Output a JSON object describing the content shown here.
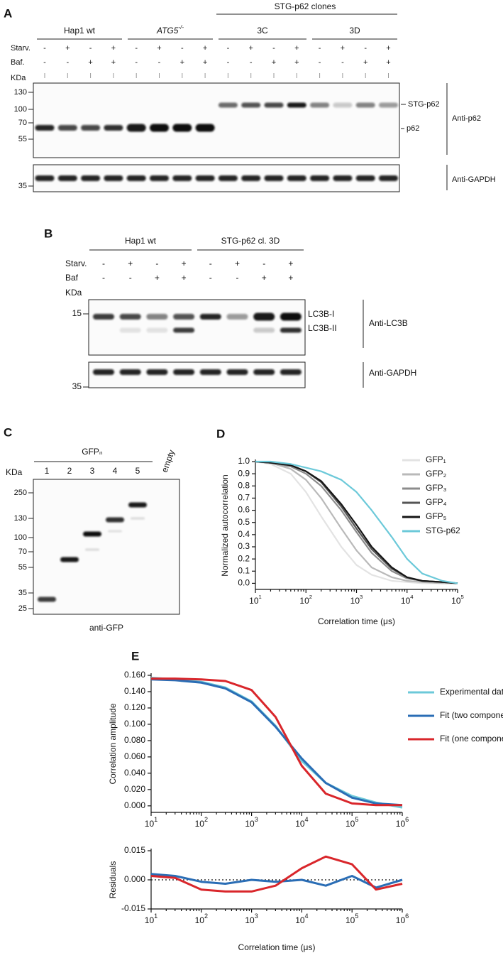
{
  "panel_a": {
    "letter": "A",
    "super_group": "STG-p62 clones",
    "groups": [
      {
        "text": "Hap1 wt"
      },
      {
        "text": "ATG5",
        "superscript": "-/-"
      },
      {
        "text": "3C"
      },
      {
        "text": "3D"
      }
    ],
    "row_labels": [
      "Starv.",
      "Baf."
    ],
    "rows": [
      [
        "-",
        "+",
        "-",
        "+",
        "-",
        "+",
        "-",
        "+",
        "-",
        "+",
        "-",
        "+",
        "-",
        "+",
        "-",
        "+"
      ],
      [
        "-",
        "-",
        "+",
        "+",
        "-",
        "-",
        "+",
        "+",
        "-",
        "-",
        "+",
        "+",
        "-",
        "-",
        "+",
        "+"
      ]
    ],
    "kda": "KDa",
    "markers_top": [
      "130",
      "100",
      "70",
      "55"
    ],
    "markers_bottom": [
      "35"
    ],
    "band_labels": [
      "STG-p62",
      "p62"
    ],
    "antibodies": [
      "Anti-p62",
      "Anti-GAPDH"
    ]
  },
  "panel_b": {
    "letter": "B",
    "groups": [
      "Hap1 wt",
      "STG-p62 cl. 3D"
    ],
    "row_labels": [
      "Starv.",
      "Baf"
    ],
    "rows": [
      [
        "-",
        "+",
        "-",
        "+",
        "-",
        "+",
        "-",
        "+"
      ],
      [
        "-",
        "-",
        "+",
        "+",
        "-",
        "-",
        "+",
        "+"
      ]
    ],
    "kda": "KDa",
    "markers_top": [
      "15"
    ],
    "markers_bottom": [
      "35"
    ],
    "band_labels": [
      "LC3B-I",
      "LC3B-II"
    ],
    "antibodies": [
      "Anti-LC3B",
      "Anti-GAPDH"
    ]
  },
  "panel_c": {
    "letter": "C",
    "group": "GFPₙ",
    "lanes": [
      "1",
      "2",
      "3",
      "4",
      "5",
      "empty"
    ],
    "kda": "KDa",
    "markers": [
      "250",
      "130",
      "100",
      "70",
      "55",
      "35",
      "25"
    ],
    "antibody": "anti-GFP"
  },
  "chart_data": [
    {
      "type": "line",
      "panel": "D",
      "xscale": "log",
      "legend": "upper right",
      "xlabel": "Correlation time (μs)",
      "ylabel": "Normalized autocorrelation",
      "x": [
        10,
        20,
        50,
        100,
        200,
        500,
        1000,
        2000,
        5000,
        10000,
        20000,
        50000,
        100000
      ],
      "xlim": [
        10,
        100000
      ],
      "xticks": [
        {
          "value": 10,
          "label": "10",
          "exponent": "1"
        },
        {
          "value": 100,
          "label": "10",
          "exponent": "2"
        },
        {
          "value": 1000,
          "label": "10",
          "exponent": "3"
        },
        {
          "value": 10000,
          "label": "10",
          "exponent": "4"
        },
        {
          "value": 100000,
          "label": "10",
          "exponent": "5"
        }
      ],
      "ylim": [
        -0.05,
        1.0
      ],
      "yticks": [
        {
          "value": 0,
          "label": "0.0"
        },
        0.1,
        0.2,
        0.3,
        0.4,
        0.5,
        0.6,
        0.7,
        0.8,
        0.9,
        {
          "value": 1,
          "label": "1.0"
        }
      ],
      "series": [
        {
          "name": "GFP₁",
          "color": "#e3e3e3",
          "values": [
            1.0,
            0.98,
            0.9,
            0.75,
            0.55,
            0.3,
            0.15,
            0.07,
            0.02,
            0.01,
            0,
            0,
            0
          ]
        },
        {
          "name": "GFP₂",
          "color": "#b9b9b9",
          "values": [
            1.0,
            0.99,
            0.94,
            0.85,
            0.7,
            0.45,
            0.27,
            0.13,
            0.05,
            0.02,
            0.01,
            0,
            0
          ]
        },
        {
          "name": "GFP₃",
          "color": "#8c8c8c",
          "values": [
            1.0,
            0.99,
            0.96,
            0.9,
            0.8,
            0.6,
            0.42,
            0.25,
            0.1,
            0.04,
            0.02,
            0.01,
            0
          ]
        },
        {
          "name": "GFP₄",
          "color": "#555555",
          "values": [
            1.0,
            0.99,
            0.97,
            0.92,
            0.83,
            0.63,
            0.45,
            0.28,
            0.12,
            0.05,
            0.02,
            0.01,
            0
          ]
        },
        {
          "name": "GFP₅",
          "color": "#151515",
          "values": [
            1.0,
            0.99,
            0.97,
            0.92,
            0.84,
            0.65,
            0.48,
            0.3,
            0.13,
            0.05,
            0.02,
            0.01,
            0
          ]
        },
        {
          "name": "STG-p62",
          "color": "#6cc9d9",
          "values": [
            1.0,
            1.0,
            0.98,
            0.95,
            0.92,
            0.85,
            0.75,
            0.6,
            0.38,
            0.2,
            0.08,
            0.02,
            0
          ]
        }
      ]
    },
    {
      "type": "line",
      "panel": "E",
      "xscale": "log",
      "legend": "upper right",
      "ylabel": "Correlation amplitude",
      "x": [
        10,
        30,
        100,
        300,
        1000,
        3000,
        10000,
        30000,
        100000,
        300000,
        1000000
      ],
      "xlim": [
        10,
        1000000
      ],
      "xticks": [
        {
          "value": 10,
          "label": "10",
          "exponent": "1"
        },
        {
          "value": 100,
          "label": "10",
          "exponent": "2"
        },
        {
          "value": 1000,
          "label": "10",
          "exponent": "3"
        },
        {
          "value": 10000,
          "label": "10",
          "exponent": "4"
        },
        {
          "value": 100000,
          "label": "10",
          "exponent": "5"
        },
        {
          "value": 1000000,
          "label": "10",
          "exponent": "6"
        }
      ],
      "ylim": [
        -0.008,
        0.16
      ],
      "yticks": [
        {
          "value": 0,
          "label": "0.000"
        },
        {
          "value": 0.02,
          "label": "0.020"
        },
        {
          "value": 0.04,
          "label": "0.040"
        },
        {
          "value": 0.06,
          "label": "0.060"
        },
        {
          "value": 0.08,
          "label": "0.080"
        },
        {
          "value": 0.1,
          "label": "0.100"
        },
        {
          "value": 0.12,
          "label": "0.120"
        },
        {
          "value": 0.14,
          "label": "0.140"
        },
        {
          "value": 0.16,
          "label": "0.160"
        }
      ],
      "series": [
        {
          "name": "Experimental data",
          "color": "#6cc9d9",
          "values": [
            0.157,
            0.155,
            0.152,
            0.145,
            0.128,
            0.098,
            0.055,
            0.028,
            0.012,
            0.004,
            -0.002
          ]
        },
        {
          "name": "Fit (two components)",
          "color": "#2a6db5",
          "values": [
            0.155,
            0.154,
            0.151,
            0.144,
            0.127,
            0.097,
            0.058,
            0.028,
            0.01,
            0.003,
            0.001
          ]
        },
        {
          "name": "Fit (one component)",
          "color": "#d9262b",
          "values": [
            0.156,
            0.156,
            0.155,
            0.153,
            0.142,
            0.109,
            0.049,
            0.015,
            0.003,
            0.001,
            0.001
          ]
        }
      ]
    },
    {
      "type": "line",
      "xscale": "log",
      "xlabel": "Correlation time (μs)",
      "ylabel": "Residuals",
      "x": [
        10,
        30,
        100,
        300,
        1000,
        3000,
        10000,
        30000,
        100000,
        300000,
        1000000
      ],
      "xlim": [
        10,
        1000000
      ],
      "xticks": [
        {
          "value": 10,
          "label": "10",
          "exponent": "1"
        },
        {
          "value": 100,
          "label": "10",
          "exponent": "2"
        },
        {
          "value": 1000,
          "label": "10",
          "exponent": "3"
        },
        {
          "value": 10000,
          "label": "10",
          "exponent": "4"
        },
        {
          "value": 100000,
          "label": "10",
          "exponent": "5"
        },
        {
          "value": 1000000,
          "label": "10",
          "exponent": "6"
        }
      ],
      "ylim": [
        -0.015,
        0.015
      ],
      "yticks": [
        {
          "value": -0.015,
          "label": "-0.015"
        },
        {
          "value": 0,
          "label": "0.000"
        },
        0.015
      ],
      "series": [
        {
          "color": "#2a6db5",
          "values": [
            0.003,
            0.002,
            -0.001,
            -0.002,
            0,
            -0.001,
            0,
            -0.003,
            0.002,
            -0.004,
            0
          ]
        },
        {
          "color": "#d9262b",
          "values": [
            0.002,
            0.001,
            -0.005,
            -0.006,
            -0.006,
            -0.003,
            0.006,
            0.012,
            0.008,
            -0.005,
            -0.002
          ]
        }
      ]
    }
  ]
}
